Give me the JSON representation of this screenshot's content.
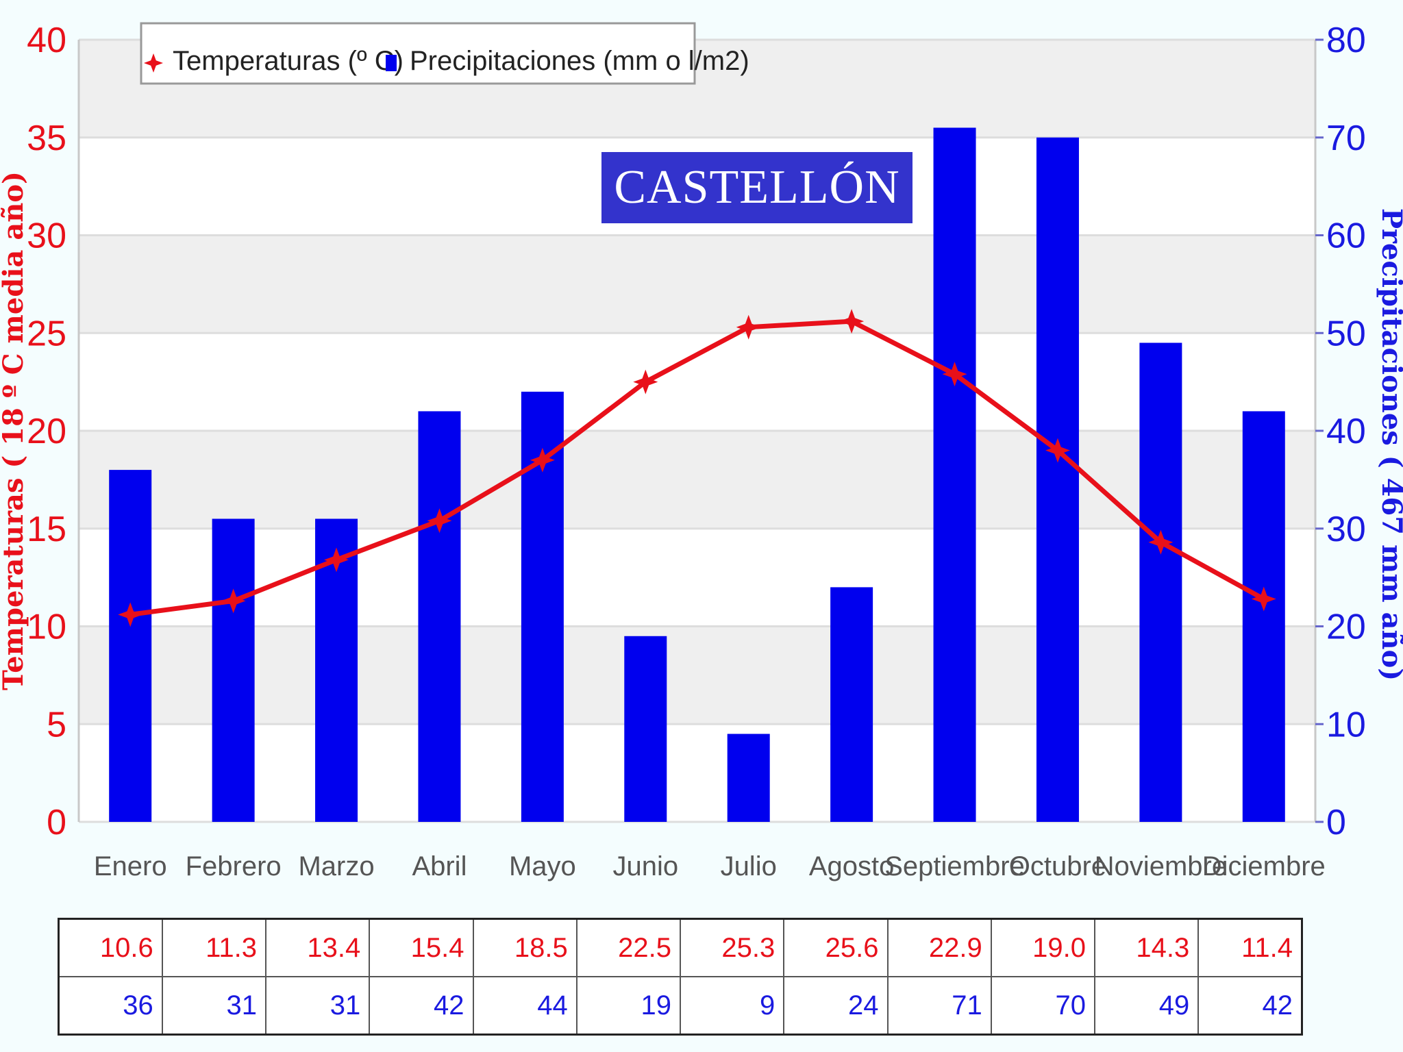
{
  "chart_data": {
    "type": "bar",
    "title": "CASTELLÓN",
    "categories": [
      "Enero",
      "Febrero",
      "Marzo",
      "Abril",
      "Mayo",
      "Junio",
      "Julio",
      "Agosto",
      "Septiembre",
      "Octubre",
      "Noviembre",
      "Diciembre"
    ],
    "series": [
      {
        "name": "Temperaturas (º C)",
        "type": "line",
        "axis": "left",
        "color": "#e8101a",
        "values": [
          10.6,
          11.3,
          13.4,
          15.4,
          18.5,
          22.5,
          25.3,
          25.6,
          22.9,
          19.0,
          14.3,
          11.4
        ]
      },
      {
        "name": "Precipitaciones (mm o l/m2)",
        "type": "bar",
        "axis": "right",
        "color": "#0000ee",
        "values": [
          36,
          31,
          31,
          42,
          44,
          19,
          9,
          24,
          71,
          70,
          49,
          42
        ]
      }
    ],
    "ylabel": "Temperaturas ( 18 º C media año)",
    "y2label": "Precipitaciones ( 467 mm año)",
    "ylim": [
      0,
      40
    ],
    "y2lim": [
      0,
      80
    ],
    "yticks": [
      0,
      5,
      10,
      15,
      20,
      25,
      30,
      35,
      40
    ],
    "y2ticks": [
      0,
      10,
      20,
      30,
      40,
      50,
      60,
      70,
      80
    ],
    "grid": true,
    "legend_position": "top-left",
    "table": {
      "temperatures": [
        "10.6",
        "11.3",
        "13.4",
        "15.4",
        "18.5",
        "22.5",
        "25.3",
        "25.6",
        "22.9",
        "19.0",
        "14.3",
        "11.4"
      ],
      "precipitation": [
        "36",
        "31",
        "31",
        "42",
        "44",
        "19",
        "9",
        "24",
        "71",
        "70",
        "49",
        "42"
      ]
    }
  },
  "colors": {
    "temperature": "#e8101a",
    "precipitation": "#0000ee",
    "title_bg": "#3333cc"
  }
}
